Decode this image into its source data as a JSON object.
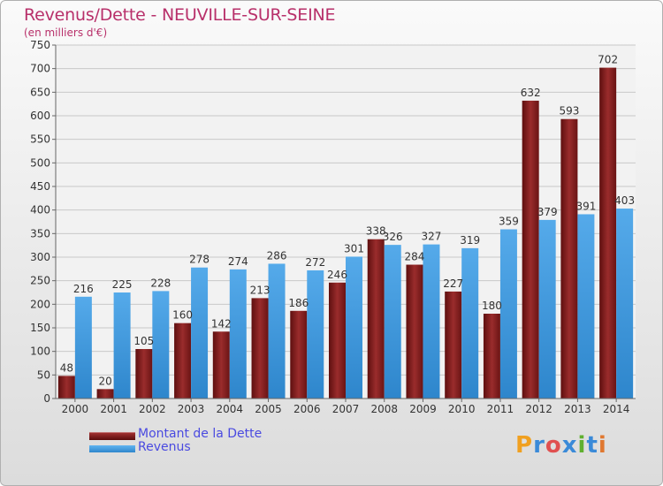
{
  "chart_data": {
    "type": "bar",
    "title": "Revenus/Dette - NEUVILLE-SUR-SEINE",
    "subtitle": "(en milliers d'€)",
    "xlabel": "",
    "ylabel": "",
    "ylim": [
      0,
      750
    ],
    "yticks": [
      0,
      50,
      100,
      150,
      200,
      250,
      300,
      350,
      400,
      450,
      500,
      550,
      600,
      650,
      700,
      750
    ],
    "grid": true,
    "categories": [
      "2000",
      "2001",
      "2002",
      "2003",
      "2004",
      "2005",
      "2006",
      "2007",
      "2008",
      "2009",
      "2010",
      "2011",
      "2012",
      "2013",
      "2014"
    ],
    "series": [
      {
        "name": "Montant de la Dette",
        "color": "#7a1a1a",
        "values": [
          48,
          20,
          105,
          160,
          142,
          213,
          186,
          246,
          338,
          284,
          227,
          180,
          632,
          593,
          702
        ]
      },
      {
        "name": "Revenus",
        "color": "#4a9fe0",
        "values": [
          216,
          225,
          228,
          278,
          274,
          286,
          272,
          301,
          326,
          327,
          319,
          359,
          379,
          391,
          403
        ]
      }
    ],
    "legend_position": "bottom-left"
  },
  "logo": {
    "letters": [
      "P",
      "r",
      "o",
      "x",
      "i",
      "t",
      "i"
    ],
    "colors": [
      "#f0a020",
      "#3a8ad8",
      "#e05050",
      "#3a8ad8",
      "#60b030",
      "#3a8ad8",
      "#e07830"
    ]
  }
}
